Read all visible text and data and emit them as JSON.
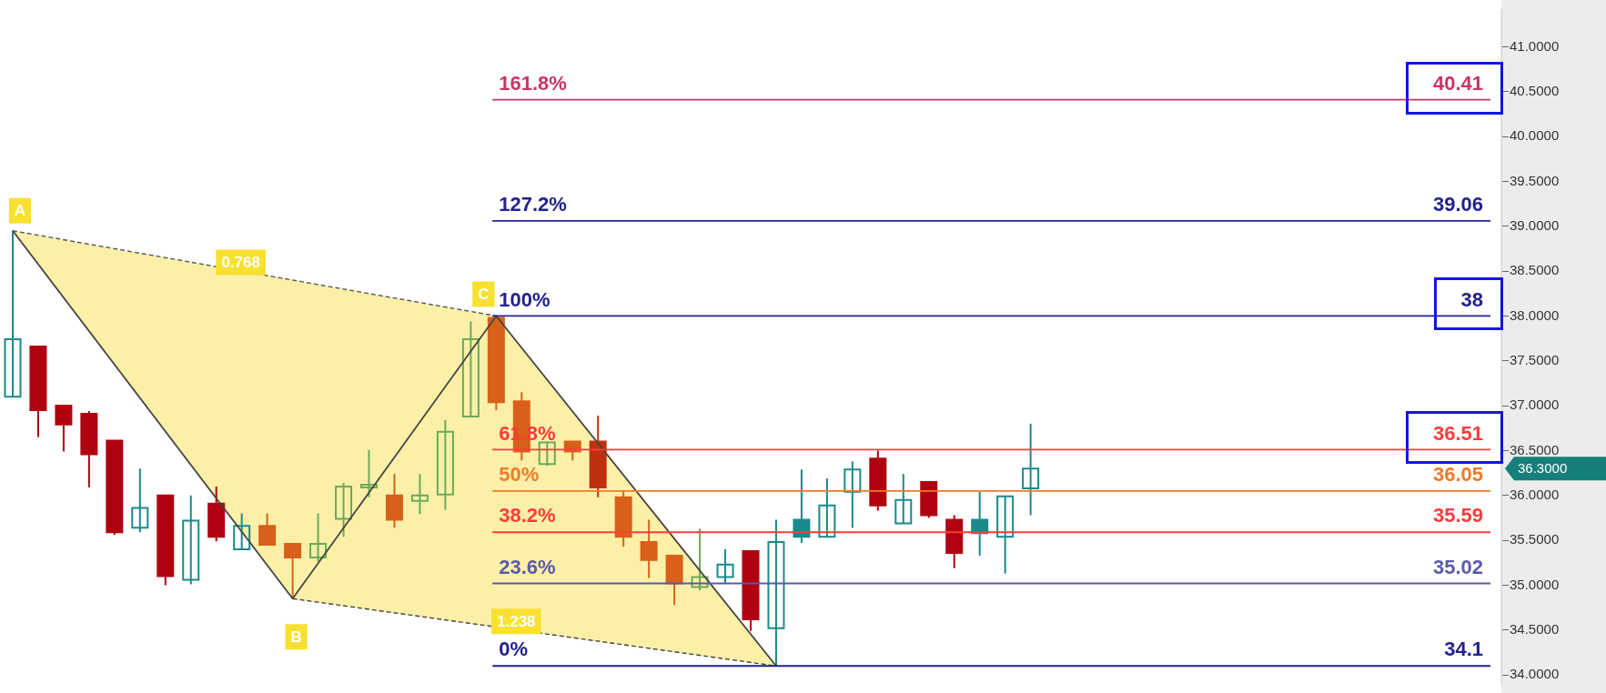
{
  "chart_data": {
    "type": "candlestick",
    "categories": [
      null,
      null,
      null,
      null,
      null,
      null,
      null,
      null,
      null,
      null,
      null,
      null,
      null,
      null,
      null,
      null,
      null,
      null,
      null,
      null,
      null,
      null,
      null,
      null,
      null,
      null,
      null,
      null,
      null,
      null,
      null,
      null,
      null,
      null,
      null,
      null,
      null,
      null,
      null,
      null,
      null,
      null,
      null,
      null,
      null,
      null,
      null,
      null,
      null,
      null,
      null,
      null,
      null,
      null,
      null,
      null,
      null,
      null,
      null
    ],
    "ohlc": [
      [
        37.1,
        38.95,
        37.1,
        37.74
      ],
      [
        37.66,
        37.66,
        36.65,
        36.95
      ],
      [
        37.0,
        37.0,
        36.49,
        36.79
      ],
      [
        36.91,
        36.94,
        36.09,
        36.46
      ],
      [
        36.61,
        36.61,
        35.56,
        35.59
      ],
      [
        35.64,
        36.3,
        35.59,
        35.86
      ],
      [
        36.0,
        36.0,
        35.0,
        35.1
      ],
      [
        35.06,
        36.0,
        35.01,
        35.72
      ],
      [
        35.91,
        36.1,
        35.49,
        35.54
      ],
      [
        35.4,
        35.8,
        35.4,
        35.66
      ],
      [
        35.66,
        35.8,
        35.45,
        35.45
      ],
      [
        35.46,
        35.46,
        34.85,
        35.31
      ],
      [
        35.31,
        35.8,
        35.26,
        35.46
      ],
      [
        35.74,
        36.14,
        35.54,
        36.1
      ],
      [
        36.09,
        36.51,
        35.98,
        36.12
      ],
      [
        36.0,
        36.24,
        35.64,
        35.73
      ],
      [
        35.94,
        36.24,
        35.79,
        36.0
      ],
      [
        36.01,
        36.84,
        35.84,
        36.71
      ],
      [
        36.88,
        37.94,
        36.88,
        37.74
      ],
      [
        37.98,
        38.0,
        36.95,
        37.04
      ],
      [
        37.05,
        37.15,
        36.39,
        36.49
      ],
      [
        36.35,
        36.6,
        36.33,
        36.59
      ],
      [
        36.6,
        36.6,
        36.39,
        36.49
      ],
      [
        36.6,
        36.89,
        35.98,
        36.09
      ],
      [
        35.98,
        36.06,
        35.43,
        35.54
      ],
      [
        35.48,
        35.73,
        35.08,
        35.28
      ],
      [
        35.33,
        35.33,
        34.78,
        35.02
      ],
      [
        34.98,
        35.63,
        34.94,
        35.09
      ],
      [
        35.09,
        35.4,
        35.02,
        35.23
      ],
      [
        35.38,
        35.39,
        34.49,
        34.62
      ],
      [
        34.52,
        35.73,
        34.1,
        35.48
      ],
      [
        35.73,
        36.29,
        35.47,
        35.54
      ],
      [
        35.54,
        36.19,
        35.54,
        35.89
      ],
      [
        36.04,
        36.38,
        35.64,
        36.29
      ],
      [
        36.41,
        36.5,
        35.83,
        35.89
      ],
      [
        35.69,
        36.24,
        35.69,
        35.95
      ],
      [
        36.15,
        36.15,
        35.75,
        35.78
      ],
      [
        35.73,
        35.78,
        35.19,
        35.36
      ],
      [
        35.73,
        36.04,
        35.33,
        35.58
      ],
      [
        35.54,
        35.99,
        35.13,
        35.99
      ],
      [
        36.08,
        36.8,
        35.78,
        36.3
      ],
      null,
      null,
      null,
      null,
      null,
      null,
      null,
      null,
      null,
      null,
      null,
      null,
      null,
      null,
      null,
      null,
      null,
      null
    ],
    "colors": [
      "#1a8a8a",
      "#b00010",
      "#b00010",
      "#b00010",
      "#b00010",
      "#1a8a8a",
      "#b00010",
      "#1a8a8a",
      "#b00010",
      "#1a8a8a",
      "#d8601a",
      "#d8601a",
      "#6aaa5a",
      "#6aaa5a",
      "#6aaa5a",
      "#d8601a",
      "#6aaa5a",
      "#6aaa5a",
      "#6aaa5a",
      "#d8601a",
      "#d8601a",
      "#6aaa5a",
      "#d8601a",
      "#c0300f",
      "#d8601a",
      "#d8601a",
      "#d8601a",
      "#6aaa5a",
      "#1a8a8a",
      "#b00010",
      "#1a8a8a",
      "#1a8a8a",
      "#1a8a8a",
      "#1a8a8a",
      "#b00010",
      "#1a8a8a",
      "#b00010",
      "#b00010",
      "#1a8a8a",
      "#1a8a8a",
      "#1a8a8a",
      null,
      null,
      null,
      null,
      null,
      null,
      null,
      null,
      null,
      null,
      null,
      null,
      null,
      null,
      null,
      null,
      null,
      null
    ],
    "series": [
      {
        "type": "line",
        "color": "#444444",
        "values": [
          38.95,
          null,
          null,
          null,
          null,
          null,
          null,
          null,
          null,
          null,
          null,
          34.85,
          null,
          null,
          null,
          null,
          null,
          null,
          null,
          38.0,
          null,
          null,
          null,
          null,
          null,
          null,
          null,
          null,
          null,
          null,
          34.1,
          null,
          null,
          null,
          null,
          null,
          null,
          null,
          null,
          null,
          null,
          null,
          null,
          null,
          null,
          null,
          null,
          null,
          null,
          null,
          null,
          null,
          null,
          null,
          null,
          null,
          null,
          null,
          null
        ]
      },
      {
        "type": "line",
        "color": "#555555",
        "line_style": "dashed",
        "values": [
          38.95,
          null,
          null,
          null,
          null,
          null,
          null,
          null,
          null,
          null,
          null,
          null,
          null,
          null,
          null,
          null,
          null,
          null,
          null,
          38.0,
          null,
          null,
          null,
          null,
          null,
          null,
          null,
          null,
          null,
          null,
          null,
          null,
          null,
          null,
          null,
          null,
          null,
          null,
          null,
          null,
          null,
          null,
          null,
          null,
          null,
          null,
          null,
          null,
          null,
          null,
          null,
          null,
          null,
          null,
          null,
          null,
          null,
          null,
          null
        ]
      },
      {
        "type": "line",
        "color": "#444444",
        "line_style": "dashed",
        "values": [
          null,
          null,
          null,
          null,
          null,
          null,
          null,
          null,
          null,
          null,
          null,
          34.85,
          null,
          null,
          null,
          null,
          null,
          null,
          null,
          null,
          null,
          null,
          null,
          null,
          null,
          null,
          null,
          null,
          null,
          null,
          34.1,
          null,
          null,
          null,
          null,
          null,
          null,
          null,
          null,
          null,
          null,
          null,
          null,
          null,
          null,
          null,
          null,
          null,
          null,
          null,
          null,
          null,
          null,
          null,
          null,
          null,
          null,
          null,
          null
        ]
      }
    ],
    "ref_lines": [
      {
        "axis": "y",
        "value": 40.41,
        "label": "40.41",
        "color": "#c8346a"
      },
      {
        "axis": "y",
        "value": 39.06,
        "label": "39.06",
        "color": "#22228c"
      },
      {
        "axis": "y",
        "value": 38,
        "label": "38",
        "color": "#22228c"
      },
      {
        "axis": "y",
        "value": 36.51,
        "label": "36.51",
        "color": "#ff3b3b"
      },
      {
        "axis": "y",
        "value": 36.05,
        "label": "36.05",
        "color": "#f07a2a"
      },
      {
        "axis": "y",
        "value": 35.59,
        "label": "35.59",
        "color": "#ff3b3b"
      },
      {
        "axis": "y",
        "value": 35.02,
        "label": "35.02",
        "color": "#5a5aaa"
      },
      {
        "axis": "y",
        "value": 34.1,
        "label": "34.1",
        "color": "#22228c"
      }
    ],
    "annotations": [
      "A",
      "B",
      "C",
      "0.768",
      "1.238",
      {
        "text": "161.8%",
        "y": 40.41
      },
      {
        "text": "127.2%",
        "y": 39.06
      },
      {
        "text": "100%",
        "y": 38
      },
      {
        "text": "61.8%",
        "y": 36.51
      },
      {
        "text": "50%",
        "y": 36.05
      },
      {
        "text": "38.2%",
        "y": 35.59
      },
      {
        "text": "23.6%",
        "y": 35.02
      },
      {
        "text": "0%",
        "y": 34.1
      },
      "36.3000"
    ],
    "ylim": [
      33.9,
      41.42
    ],
    "yticks": [
      {
        "value": 34,
        "label": "34.0000"
      },
      {
        "value": 34.5,
        "label": "34.5000"
      },
      {
        "value": 35,
        "label": "35.0000"
      },
      {
        "value": 35.5,
        "label": "35.5000"
      },
      {
        "value": 36,
        "label": "36.0000"
      },
      {
        "value": 36.5,
        "label": "36.5000"
      },
      {
        "value": 37,
        "label": "37.0000"
      },
      {
        "value": 37.5,
        "label": "37.5000"
      },
      {
        "value": 38,
        "label": "38.0000"
      },
      {
        "value": 38.5,
        "label": "38.5000"
      },
      {
        "value": 39,
        "label": "39.0000"
      },
      {
        "value": 39.5,
        "label": "39.5000"
      },
      {
        "value": 40,
        "label": "40.0000"
      },
      {
        "value": 40.5,
        "label": "40.5000"
      },
      {
        "value": 41,
        "label": "41.0000"
      }
    ],
    "tick_labels": "y",
    "marker": "none"
  }
}
